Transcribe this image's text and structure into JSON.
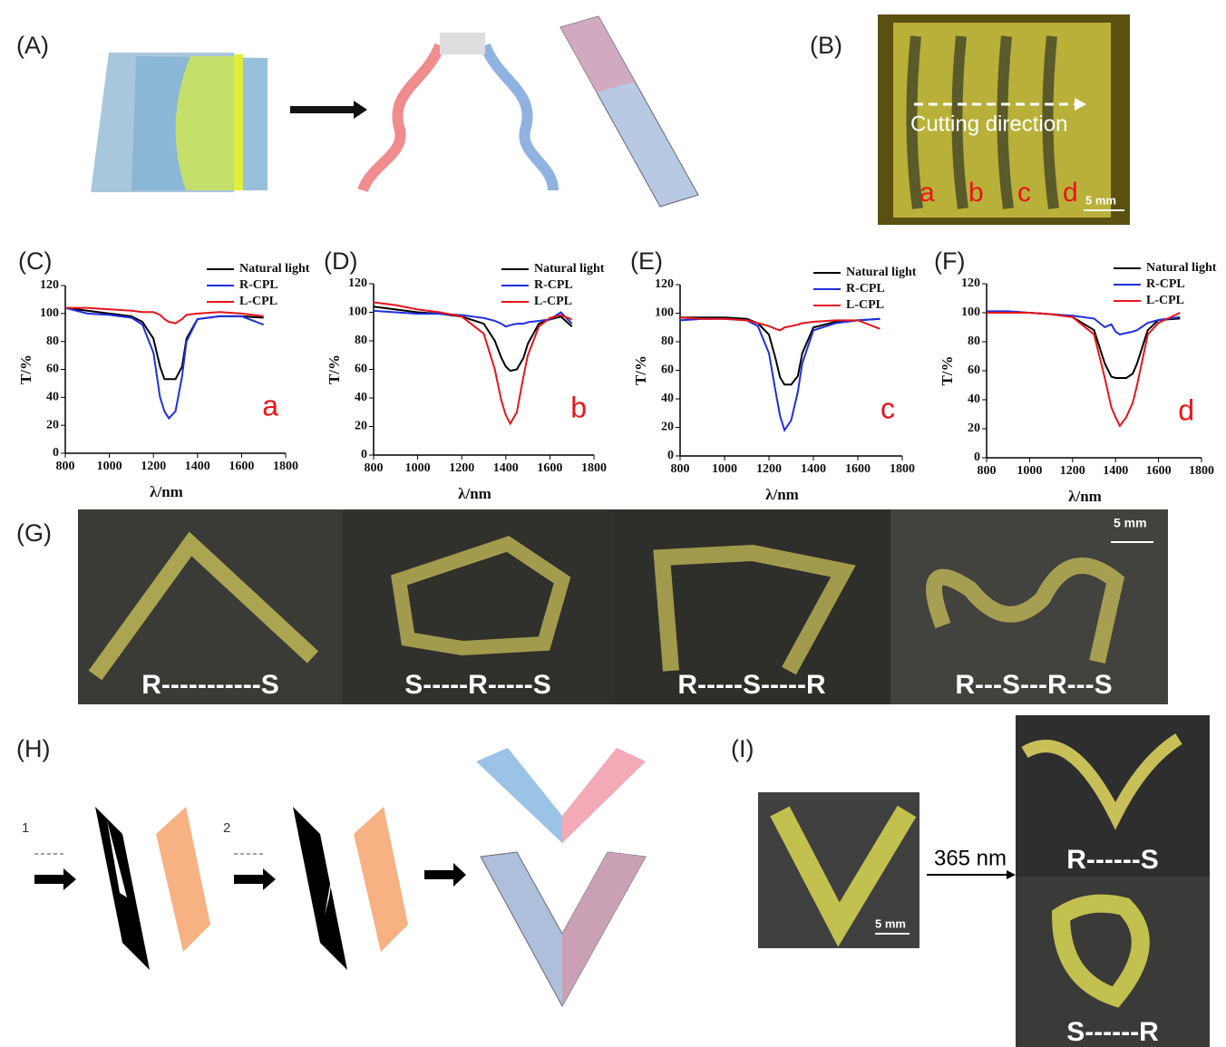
{
  "figure": {
    "panel_labels": [
      "(A)",
      "(B)",
      "(G)",
      "(H)",
      "(I)"
    ],
    "b_photo": {
      "arrow_text": "Cutting direction",
      "strip_labels": [
        "a",
        "b",
        "c",
        "d"
      ],
      "scale": "5 mm"
    },
    "g_photos": {
      "labels": [
        "R-----------S",
        "S-----R-----S",
        "R-----S-----R",
        "R---S---R---S"
      ],
      "scale": "5 mm"
    },
    "h_steps": [
      "1",
      "2"
    ],
    "i_photos": {
      "wavelength": "365 nm",
      "labels": [
        "R------S",
        "S------R"
      ],
      "scale": "5 mm"
    }
  },
  "chart_data": [
    {
      "type": "line",
      "panel_label": "(C)",
      "annotation": "a",
      "xlabel": "λ/nm",
      "ylabel": "T/%",
      "x": [
        800,
        900,
        1000,
        1100,
        1150,
        1200,
        1230,
        1250,
        1270,
        1300,
        1330,
        1350,
        1400,
        1500,
        1600,
        1700
      ],
      "series": [
        {
          "name": "Natural light",
          "color": "#000000",
          "values": [
            104,
            102,
            100,
            98,
            94,
            82,
            62,
            53,
            53,
            53,
            62,
            82,
            96,
            98,
            98,
            97
          ]
        },
        {
          "name": "R-CPL",
          "color": "#1f2fe0",
          "values": [
            104,
            100,
            99,
            97,
            92,
            72,
            40,
            30,
            25,
            30,
            55,
            80,
            96,
            98,
            98,
            92
          ]
        },
        {
          "name": "L-CPL",
          "color": "#e8141a",
          "values": [
            104,
            104,
            103,
            102,
            101,
            101,
            99,
            96,
            94,
            93,
            96,
            99,
            100,
            101,
            100,
            98
          ]
        }
      ],
      "xlim": [
        800,
        1800
      ],
      "ylim": [
        0,
        120
      ],
      "xticks": [
        800,
        1000,
        1200,
        1400,
        1600,
        1800
      ],
      "yticks": [
        0,
        20,
        40,
        60,
        80,
        100,
        120
      ]
    },
    {
      "type": "line",
      "panel_label": "(D)",
      "annotation": "b",
      "xlabel": "λ/nm",
      "ylabel": "T/%",
      "x": [
        800,
        900,
        1000,
        1100,
        1200,
        1300,
        1350,
        1380,
        1400,
        1420,
        1450,
        1480,
        1500,
        1550,
        1600,
        1650,
        1700
      ],
      "series": [
        {
          "name": "Natural light",
          "color": "#000000",
          "values": [
            104,
            102,
            100,
            99,
            97,
            92,
            80,
            68,
            62,
            59,
            60,
            68,
            78,
            92,
            95,
            97,
            90
          ]
        },
        {
          "name": "R-CPL",
          "color": "#1f2fe0",
          "values": [
            101,
            100,
            99,
            99,
            98,
            96,
            94,
            92,
            90,
            91,
            92,
            92,
            93,
            94,
            95,
            100,
            92
          ]
        },
        {
          "name": "L-CPL",
          "color": "#e8141a",
          "values": [
            107,
            105,
            102,
            100,
            97,
            85,
            60,
            38,
            28,
            22,
            30,
            55,
            70,
            90,
            96,
            98,
            95
          ]
        }
      ],
      "xlim": [
        800,
        1800
      ],
      "ylim": [
        0,
        120
      ],
      "xticks": [
        800,
        1000,
        1200,
        1400,
        1600,
        1800
      ],
      "yticks": [
        0,
        20,
        40,
        60,
        80,
        100,
        120
      ]
    },
    {
      "type": "line",
      "panel_label": "(E)",
      "annotation": "c",
      "xlabel": "λ/nm",
      "ylabel": "T/%",
      "x": [
        800,
        900,
        1000,
        1100,
        1150,
        1200,
        1230,
        1250,
        1270,
        1300,
        1330,
        1350,
        1400,
        1500,
        1600,
        1700
      ],
      "series": [
        {
          "name": "Natural light",
          "color": "#000000",
          "values": [
            97,
            97,
            97,
            96,
            93,
            85,
            68,
            55,
            50,
            50,
            56,
            72,
            90,
            94,
            95,
            96
          ]
        },
        {
          "name": "R-CPL",
          "color": "#1f2fe0",
          "values": [
            95,
            96,
            96,
            95,
            91,
            72,
            45,
            28,
            18,
            25,
            45,
            65,
            88,
            93,
            95,
            96
          ]
        },
        {
          "name": "L-CPL",
          "color": "#e8141a",
          "values": [
            97,
            96,
            96,
            95,
            93,
            91,
            89,
            88,
            90,
            91,
            92,
            93,
            94,
            95,
            95,
            89
          ]
        }
      ],
      "xlim": [
        800,
        1800
      ],
      "ylim": [
        0,
        120
      ],
      "xticks": [
        800,
        1000,
        1200,
        1400,
        1600,
        1800
      ],
      "yticks": [
        0,
        20,
        40,
        60,
        80,
        100,
        120
      ]
    },
    {
      "type": "line",
      "panel_label": "(F)",
      "annotation": "d",
      "xlabel": "λ/nm",
      "ylabel": "T/%",
      "x": [
        800,
        900,
        1000,
        1100,
        1200,
        1300,
        1350,
        1380,
        1400,
        1420,
        1450,
        1480,
        1500,
        1550,
        1600,
        1700
      ],
      "series": [
        {
          "name": "Natural light",
          "color": "#000000",
          "values": [
            101,
            100,
            100,
            99,
            97,
            88,
            65,
            56,
            55,
            55,
            55,
            58,
            65,
            88,
            95,
            96
          ]
        },
        {
          "name": "R-CPL",
          "color": "#1f2fe0",
          "values": [
            101,
            101,
            100,
            99,
            98,
            96,
            90,
            92,
            87,
            85,
            86,
            87,
            88,
            93,
            95,
            97
          ]
        },
        {
          "name": "L-CPL",
          "color": "#e8141a",
          "values": [
            100,
            100,
            100,
            99,
            97,
            85,
            55,
            35,
            28,
            22,
            28,
            38,
            50,
            85,
            93,
            100
          ]
        }
      ],
      "xlim": [
        800,
        1800
      ],
      "ylim": [
        0,
        120
      ],
      "xticks": [
        800,
        1000,
        1200,
        1400,
        1600,
        1800
      ],
      "yticks": [
        0,
        20,
        40,
        60,
        80,
        100,
        120
      ]
    }
  ]
}
